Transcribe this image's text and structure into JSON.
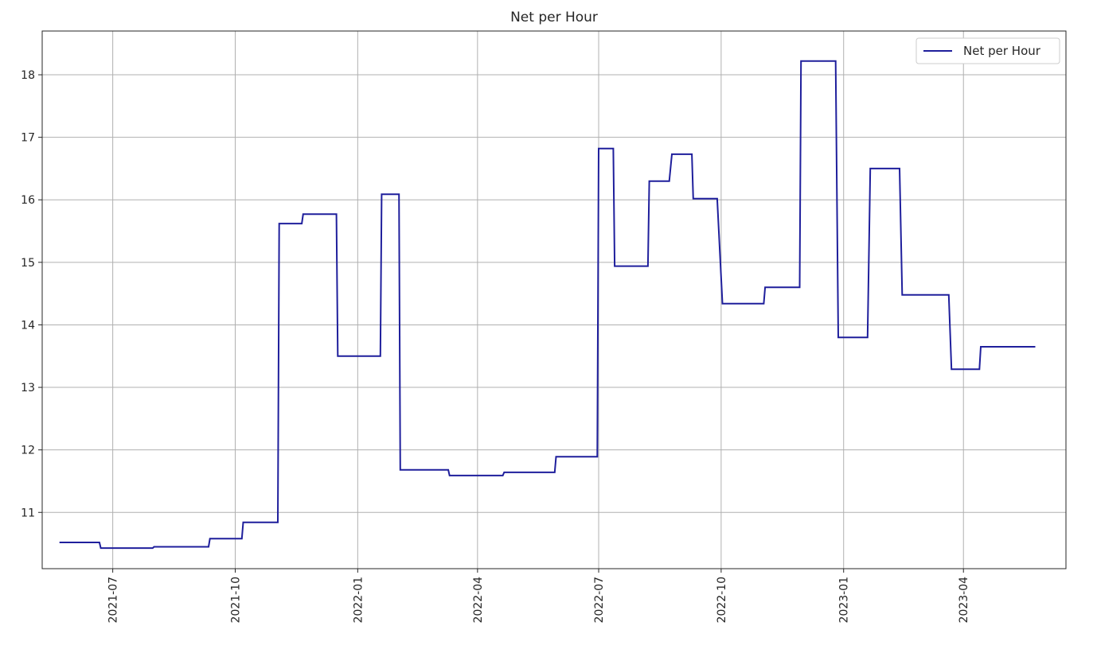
{
  "chart_data": {
    "type": "line",
    "title": "Net per Hour",
    "xlabel": "",
    "ylabel": "",
    "line_style": "step",
    "x_ticks": [
      "2021-07",
      "2021-10",
      "2022-01",
      "2022-04",
      "2022-07",
      "2022-10",
      "2023-01",
      "2023-04"
    ],
    "y_ticks": [
      11,
      12,
      13,
      14,
      15,
      16,
      17,
      18
    ],
    "xlim": [
      "2021-05-09",
      "2023-06-17"
    ],
    "ylim": [
      10.1,
      18.7
    ],
    "grid": true,
    "legend": {
      "position": "top-right",
      "entries": [
        "Net per Hour"
      ]
    },
    "colors": {
      "series": "#1f1f9c",
      "grid": "#b0b0b0",
      "axes": "#262626"
    },
    "series": [
      {
        "name": "Net per Hour",
        "points": [
          [
            "2021-05-22",
            10.52
          ],
          [
            "2021-06-21",
            10.52
          ],
          [
            "2021-06-22",
            10.43
          ],
          [
            "2021-07-31",
            10.43
          ],
          [
            "2021-08-01",
            10.45
          ],
          [
            "2021-09-11",
            10.45
          ],
          [
            "2021-09-12",
            10.58
          ],
          [
            "2021-10-06",
            10.58
          ],
          [
            "2021-10-07",
            10.84
          ],
          [
            "2021-11-02",
            10.84
          ],
          [
            "2021-11-03",
            15.62
          ],
          [
            "2021-11-20",
            15.62
          ],
          [
            "2021-11-21",
            15.77
          ],
          [
            "2021-12-16",
            15.77
          ],
          [
            "2021-12-17",
            13.5
          ],
          [
            "2022-01-18",
            13.5
          ],
          [
            "2022-01-19",
            16.09
          ],
          [
            "2022-02-01",
            16.09
          ],
          [
            "2022-02-02",
            11.68
          ],
          [
            "2022-03-10",
            11.68
          ],
          [
            "2022-03-11",
            11.59
          ],
          [
            "2022-04-20",
            11.59
          ],
          [
            "2022-04-21",
            11.64
          ],
          [
            "2022-05-29",
            11.64
          ],
          [
            "2022-05-30",
            11.89
          ],
          [
            "2022-06-30",
            11.89
          ],
          [
            "2022-07-01",
            16.82
          ],
          [
            "2022-07-12",
            16.82
          ],
          [
            "2022-07-13",
            14.94
          ],
          [
            "2022-08-07",
            14.94
          ],
          [
            "2022-08-08",
            16.3
          ],
          [
            "2022-08-23",
            16.3
          ],
          [
            "2022-08-25",
            16.73
          ],
          [
            "2022-09-09",
            16.73
          ],
          [
            "2022-09-10",
            16.02
          ],
          [
            "2022-09-28",
            16.02
          ],
          [
            "2022-10-02",
            14.34
          ],
          [
            "2022-11-02",
            14.34
          ],
          [
            "2022-11-03",
            14.6
          ],
          [
            "2022-11-29",
            14.6
          ],
          [
            "2022-11-30",
            18.22
          ],
          [
            "2022-12-26",
            18.22
          ],
          [
            "2022-12-28",
            13.8
          ],
          [
            "2023-01-19",
            13.8
          ],
          [
            "2023-01-21",
            16.5
          ],
          [
            "2023-02-12",
            16.5
          ],
          [
            "2023-02-14",
            14.48
          ],
          [
            "2023-03-21",
            14.48
          ],
          [
            "2023-03-23",
            13.29
          ],
          [
            "2023-04-13",
            13.29
          ],
          [
            "2023-04-14",
            13.65
          ],
          [
            "2023-05-25",
            13.65
          ]
        ]
      }
    ]
  }
}
